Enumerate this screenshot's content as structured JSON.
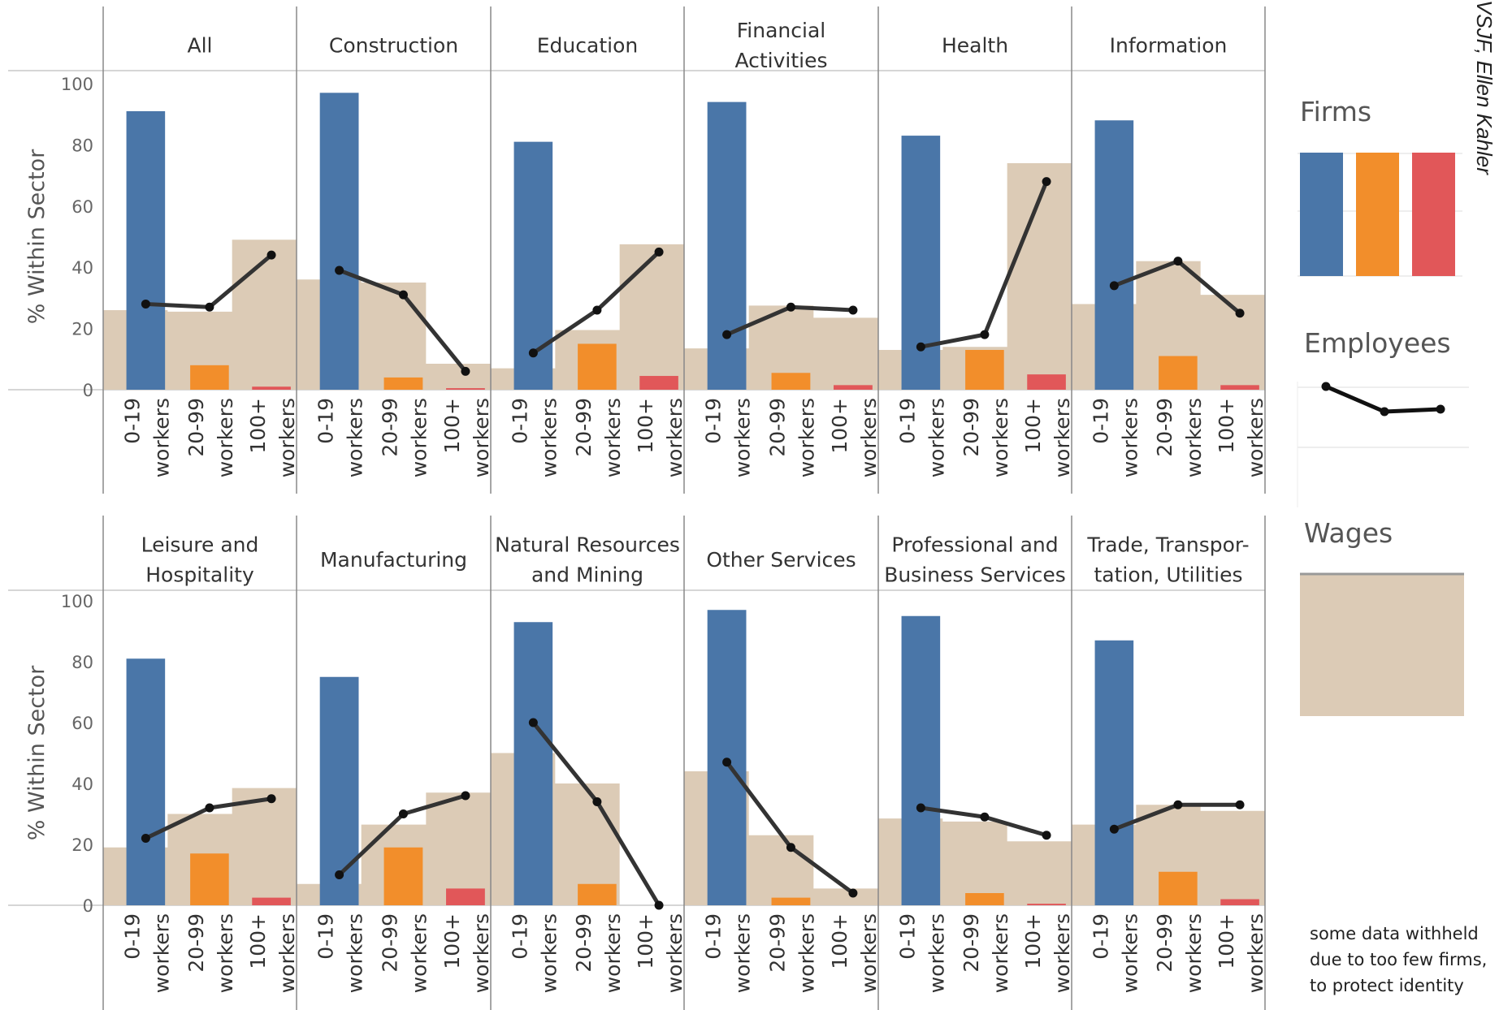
{
  "chart_data": {
    "type": "bar",
    "ylabel": "% Within Sector",
    "ylim": [
      0,
      100
    ],
    "yticks": [
      0,
      20,
      40,
      60,
      80,
      100
    ],
    "categories": [
      "0-19 workers",
      "20-99 workers",
      "100+ workers"
    ],
    "category_lines": [
      [
        "0-19",
        "workers"
      ],
      [
        "20-99",
        "workers"
      ],
      [
        "100+",
        "workers"
      ]
    ],
    "series_colors": {
      "firms": [
        "#4a76a8",
        "#f28e2b",
        "#e15759"
      ],
      "wages": "#dccbb6",
      "employees": "#333333"
    },
    "legend": {
      "firms": "Firms",
      "employees": "Employees",
      "wages": "Wages"
    },
    "panels": [
      {
        "title": [
          "All"
        ],
        "firms": [
          91,
          8,
          1
        ],
        "employees": [
          28,
          27,
          44
        ],
        "wages": [
          26,
          25.5,
          49
        ]
      },
      {
        "title": [
          "Construction"
        ],
        "firms": [
          97,
          4,
          0.5
        ],
        "employees": [
          39,
          31,
          6
        ],
        "wages": [
          36,
          35,
          8.5
        ]
      },
      {
        "title": [
          "Education"
        ],
        "firms": [
          81,
          15,
          4.5
        ],
        "employees": [
          12,
          26,
          45
        ],
        "wages": [
          7,
          19.5,
          47.5
        ]
      },
      {
        "title": [
          "Financial",
          "Activities"
        ],
        "firms": [
          94,
          5.5,
          1.5
        ],
        "employees": [
          18,
          27,
          26
        ],
        "wages": [
          13.5,
          27.5,
          23.5
        ]
      },
      {
        "title": [
          "Health"
        ],
        "firms": [
          83,
          13,
          5
        ],
        "employees": [
          14,
          18,
          68
        ],
        "wages": [
          13,
          14,
          74
        ]
      },
      {
        "title": [
          "Information"
        ],
        "firms": [
          88,
          11,
          1.5
        ],
        "employees": [
          34,
          42,
          25
        ],
        "wages": [
          28,
          42,
          31
        ]
      },
      {
        "title": [
          "Leisure and",
          "Hospitality"
        ],
        "firms": [
          81,
          17,
          2.5
        ],
        "employees": [
          22,
          32,
          35
        ],
        "wages": [
          19,
          30,
          38.5
        ]
      },
      {
        "title": [
          "Manufacturing"
        ],
        "firms": [
          75,
          19,
          5.5
        ],
        "employees": [
          10,
          30,
          36
        ],
        "wages": [
          7,
          26.5,
          37
        ]
      },
      {
        "title": [
          "Natural Resources",
          "and Mining"
        ],
        "firms": [
          93,
          7,
          0
        ],
        "employees": [
          60,
          34,
          0
        ],
        "wages": [
          50,
          40,
          0
        ]
      },
      {
        "title": [
          "Other Services"
        ],
        "firms": [
          97,
          2.5,
          0
        ],
        "employees": [
          47,
          19,
          4
        ],
        "wages": [
          44,
          23,
          5.5
        ]
      },
      {
        "title": [
          "Professional and",
          "Business Services"
        ],
        "firms": [
          95,
          4,
          0.5
        ],
        "employees": [
          32,
          29,
          23
        ],
        "wages": [
          28.5,
          27.5,
          21
        ]
      },
      {
        "title": [
          "Trade, Transpor-",
          "tation, Utilities"
        ],
        "firms": [
          87,
          11,
          2
        ],
        "employees": [
          25,
          33,
          33
        ],
        "wages": [
          26.5,
          33,
          31
        ]
      }
    ],
    "note": "some data withheld due to too few firms, to protect identity",
    "credit": "VSJF, Ellen Kahler"
  }
}
